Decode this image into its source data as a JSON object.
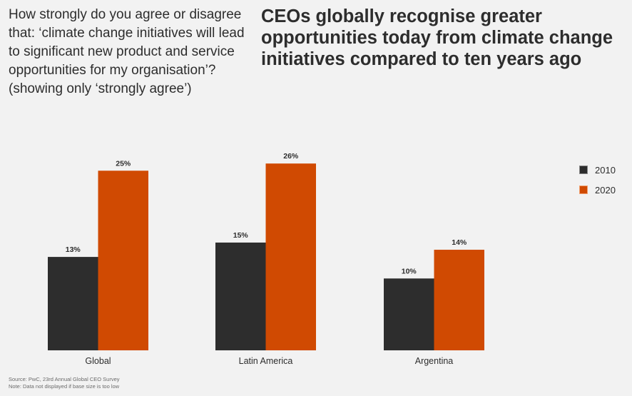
{
  "question": "How strongly do you agree or disagree that: ‘climate change initiatives will lead to significant new product and service opportunities for my organisation’? (showing only ‘strongly agree’)",
  "headline": "CEOs globally recognise greater opportunities today from climate change initiatives compared to ten years ago",
  "footer": {
    "source": "Source: PwC, 23rd Annual Global CEO Survey",
    "note": "Note: Data not displayed if base size is too low"
  },
  "chart_data": {
    "type": "bar",
    "title": "CEOs globally recognise greater opportunities today from climate change initiatives compared to ten years ago",
    "xlabel": "",
    "ylabel": "",
    "categories": [
      "Global",
      "Latin America",
      "Argentina"
    ],
    "series": [
      {
        "name": "2010",
        "color": "#2d2d2d",
        "values": [
          13,
          15,
          10
        ],
        "labels": [
          "13%",
          "15%",
          "10%"
        ]
      },
      {
        "name": "2020",
        "color": "#d04a02",
        "values": [
          25,
          26,
          14
        ],
        "labels": [
          "25%",
          "26%",
          "14%"
        ]
      }
    ],
    "ylim": [
      0,
      26
    ],
    "grid": false,
    "legend": "right",
    "unit": "%"
  }
}
